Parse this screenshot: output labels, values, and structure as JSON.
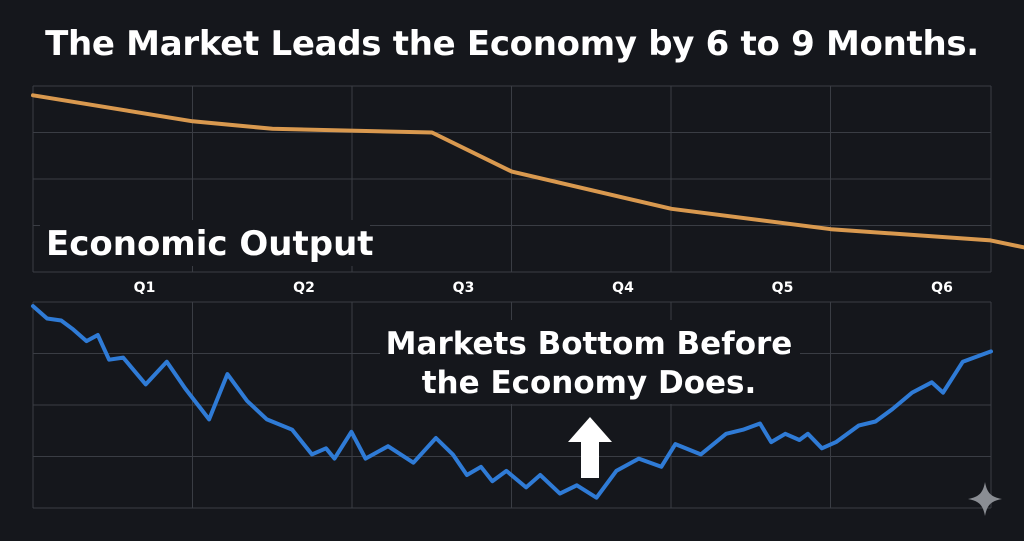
{
  "title": "The Market Leads the Economy by 6 to 9 Months.",
  "colors": {
    "background": "#15171c",
    "grid": "#3a3d44",
    "economy_line": "#d9994f",
    "market_line": "#2f7bd6",
    "text": "#ffffff"
  },
  "icons": {
    "corner": "sparkle-icon",
    "arrow": "up-arrow-icon"
  },
  "chart_data": [
    {
      "type": "line",
      "title": "",
      "annotation": "Economic Output",
      "x_ticks": [
        "Q1",
        "Q2",
        "Q3",
        "Q4",
        "Q5",
        "Q6"
      ],
      "ylim": [
        0,
        100
      ],
      "grid": true,
      "series": [
        {
          "x": [
            0,
            1,
            1.5,
            2.5,
            3,
            4,
            5,
            6,
            6.5
          ],
          "values": [
            95,
            81,
            77,
            75,
            54,
            34,
            23,
            17,
            8
          ]
        }
      ]
    },
    {
      "type": "line",
      "title": "",
      "annotation": [
        "Markets Bottom Before",
        "the Economy Does."
      ],
      "ylim": [
        0,
        100
      ],
      "grid": true,
      "series": [
        {
          "x": [
            0,
            0.1,
            0.2,
            0.28,
            0.38,
            0.46,
            0.54,
            0.64,
            0.8,
            0.95,
            1.08,
            1.25,
            1.38,
            1.52,
            1.66,
            1.84,
            1.98,
            2.08,
            2.14,
            2.26,
            2.36,
            2.52,
            2.7,
            2.86,
            2.98,
            3.08,
            3.18,
            3.26,
            3.36,
            3.5,
            3.6,
            3.74,
            3.86,
            4.0,
            4.14,
            4.3,
            4.46,
            4.56,
            4.74,
            4.92,
            5.04,
            5.16,
            5.24,
            5.34,
            5.44,
            5.5,
            5.6,
            5.7,
            5.86,
            5.98,
            6.1,
            6.24,
            6.38,
            6.46,
            6.6,
            6.8
          ],
          "values": [
            98,
            92,
            91,
            87,
            81,
            84,
            72,
            73,
            60,
            71,
            58,
            43,
            65,
            52,
            43,
            38,
            26,
            29,
            24,
            37,
            24,
            30,
            22,
            34,
            26,
            16,
            20,
            13,
            18,
            10,
            16,
            7,
            11,
            5,
            18,
            24,
            20,
            31,
            26,
            36,
            38,
            41,
            32,
            36,
            33,
            36,
            29,
            32,
            40,
            42,
            48,
            56,
            61,
            56,
            71,
            76
          ]
        }
      ]
    }
  ]
}
